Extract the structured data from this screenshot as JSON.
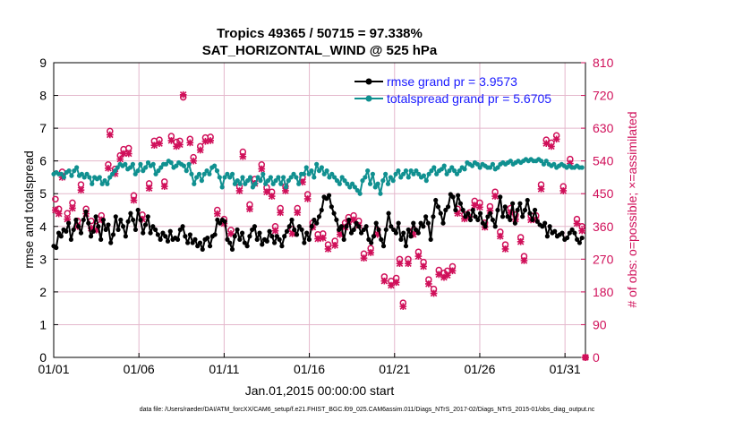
{
  "chart_data": {
    "type": "line",
    "title": "Tropics 49365 / 50715 = 97.338%",
    "subtitle": "SAT_HORIZONTAL_WIND @ 525 hPa",
    "xlabel": "Jan.01,2015 00:00:00 start",
    "ylabel": "rmse and totalspread",
    "y2label": "# of obs: o=possible; ×=assimilated",
    "footer": "data file: /Users/raeder/DAI/ATM_forcXX/CAM6_setup/f.e21.FHIST_BGC.f09_025.CAM6assim.011/Diags_NTrS_2017-02/Diags_NTrS_2015-01/obs_diag_output.nc",
    "xlim": [
      1,
      32.2
    ],
    "ylim": [
      0,
      9
    ],
    "y2lim": [
      0,
      810
    ],
    "x_ticks": [
      1,
      6,
      11,
      16,
      21,
      26,
      31
    ],
    "x_tick_labels": [
      "01/01",
      "01/06",
      "01/11",
      "01/16",
      "01/21",
      "01/26",
      "01/31"
    ],
    "y_ticks": [
      "0",
      "1",
      "2",
      "3",
      "4",
      "5",
      "6",
      "7",
      "8",
      "9"
    ],
    "y2_ticks": [
      "0",
      "90",
      "180",
      "270",
      "360",
      "450",
      "540",
      "630",
      "720",
      "810"
    ],
    "colors": {
      "rmse": "#000000",
      "spread": "#109090",
      "obs": "#d0105a",
      "legend_text": "#1a1aff"
    },
    "series": [
      {
        "name": "rmse",
        "legend": "rmse grand pr = 3.9573",
        "values": [
          3.4,
          3.35,
          3.8,
          3.7,
          3.9,
          3.85,
          4.1,
          3.6,
          3.9,
          4.2,
          4.0,
          3.8,
          4.2,
          4.45,
          4.1,
          3.7,
          3.85,
          4.3,
          4.0,
          3.6,
          4.2,
          3.9,
          4.05,
          3.5,
          3.75,
          4.3,
          3.9,
          4.2,
          4.0,
          3.7,
          4.15,
          4.4,
          4.2,
          3.9,
          4.5,
          4.2,
          3.8,
          4.05,
          4.3,
          3.8,
          4.0,
          3.9,
          3.75,
          3.6,
          3.8,
          3.7,
          3.55,
          3.85,
          3.6,
          3.65,
          3.6,
          3.9,
          4.0,
          3.7,
          3.5,
          3.75,
          3.5,
          3.6,
          3.4,
          3.5,
          3.3,
          3.6,
          3.65,
          3.4,
          3.7,
          3.75,
          4.2,
          4.1,
          4.2,
          4.15,
          3.6,
          3.5,
          3.3,
          3.7,
          3.9,
          3.6,
          3.8,
          3.5,
          3.4,
          3.7,
          3.9,
          4.0,
          3.6,
          3.8,
          3.45,
          3.6,
          3.55,
          3.85,
          3.7,
          3.5,
          3.7,
          3.6,
          3.4,
          3.7,
          3.85,
          4.0,
          4.2,
          3.9,
          3.75,
          4.0,
          3.9,
          3.5,
          3.8,
          3.6,
          4.0,
          4.2,
          4.1,
          4.3,
          4.5,
          4.9,
          4.85,
          4.95,
          4.6,
          4.4,
          4.2,
          3.9,
          4.0,
          3.6,
          4.0,
          4.2,
          3.8,
          3.9,
          4.1,
          4.0,
          3.8,
          3.9,
          4.0,
          3.6,
          3.5,
          3.7,
          4.1,
          3.9,
          3.6,
          3.4,
          3.9,
          4.4,
          4.0,
          3.9,
          3.8,
          4.1,
          3.6,
          3.8,
          3.4,
          3.9,
          3.7,
          4.1,
          3.9,
          3.8,
          4.1,
          4.0,
          4.3,
          4.1,
          3.6,
          4.3,
          4.8,
          4.6,
          4.4,
          4.1,
          4.5,
          4.6,
          4.98,
          4.9,
          4.5,
          4.95,
          4.7,
          4.5,
          4.3,
          4.4,
          4.2,
          4.5,
          4.3,
          4.2,
          4.4,
          4.1,
          4.0,
          4.3,
          4.4,
          4.2,
          4.0,
          4.5,
          4.9,
          4.3,
          4.6,
          4.3,
          4.2,
          4.7,
          4.1,
          4.5,
          4.7,
          4.3,
          4.5,
          4.8,
          4.4,
          4.2,
          4.5,
          4.15,
          4.05,
          4.0,
          4.1,
          3.7,
          4.0,
          3.8,
          3.85,
          3.7,
          3.75,
          3.8,
          3.6,
          3.65,
          3.8,
          3.9,
          3.8,
          3.6,
          3.5,
          3.65
        ]
      },
      {
        "name": "totalspread",
        "legend": "totalspread grand pr = 5.6705",
        "values": [
          5.6,
          5.65,
          5.6,
          5.6,
          5.5,
          5.65,
          5.7,
          5.55,
          5.7,
          5.8,
          5.55,
          5.6,
          5.5,
          5.6,
          5.5,
          5.3,
          5.5,
          5.45,
          5.5,
          5.3,
          5.4,
          5.3,
          5.5,
          5.6,
          5.7,
          5.8,
          5.9,
          5.85,
          5.9,
          5.75,
          5.8,
          5.9,
          5.6,
          5.7,
          5.9,
          5.7,
          5.8,
          5.95,
          5.85,
          5.9,
          5.6,
          5.7,
          5.8,
          5.9,
          5.9,
          6.0,
          5.95,
          5.8,
          5.85,
          5.95,
          5.9,
          5.85,
          5.7,
          5.9,
          5.6,
          5.3,
          5.5,
          5.6,
          5.4,
          5.6,
          5.7,
          5.6,
          5.8,
          5.85,
          5.7,
          5.5,
          5.2,
          5.5,
          5.6,
          5.5,
          5.6,
          5.3,
          5.4,
          5.3,
          5.5,
          5.3,
          5.4,
          5.5,
          5.2,
          5.3,
          5.5,
          5.4,
          5.6,
          5.3,
          5.4,
          5.5,
          5.3,
          5.4,
          5.5,
          5.3,
          5.5,
          5.2,
          5.4,
          5.5,
          5.6,
          5.5,
          5.3,
          5.6,
          5.6,
          5.8,
          5.6,
          5.7,
          5.5,
          5.9,
          5.7,
          5.8,
          5.6,
          5.7,
          5.5,
          5.6,
          5.5,
          5.4,
          5.3,
          5.5,
          5.4,
          5.3,
          5.2,
          5.3,
          5.2,
          5.1,
          5.0,
          5.4,
          5.5,
          5.7,
          5.3,
          5.6,
          5.2,
          5.3,
          5.0,
          5.4,
          5.6,
          5.3,
          5.5,
          5.4,
          5.6,
          5.7,
          5.5,
          5.6,
          5.7,
          5.5,
          5.7,
          5.6,
          5.7,
          5.6,
          5.5,
          5.55,
          5.4,
          5.6,
          5.7,
          5.8,
          5.6,
          5.7,
          5.75,
          5.85,
          5.6,
          5.7,
          5.8,
          5.7,
          5.6,
          5.7,
          5.8,
          5.75,
          5.95,
          5.9,
          5.85,
          5.95,
          5.9,
          5.8,
          5.9,
          5.85,
          5.8,
          5.8,
          5.9,
          5.75,
          5.8,
          5.9,
          5.95,
          5.9,
          5.95,
          6.0,
          5.9,
          5.95,
          6.0,
          5.95,
          6.0,
          6.05,
          6.0,
          6.05,
          6.0,
          6.0,
          6.05,
          6.0,
          5.9,
          6.0,
          5.9,
          5.85,
          5.9,
          5.8,
          5.85,
          5.9,
          5.85,
          5.8,
          5.85,
          5.8,
          5.8,
          5.85,
          5.8,
          5.8
        ]
      },
      {
        "name": "obs_possible",
        "points": [
          [
            1.1,
            435
          ],
          [
            1.3,
            408
          ],
          [
            1.5,
            510
          ],
          [
            1.8,
            396
          ],
          [
            2.1,
            425
          ],
          [
            2.4,
            375
          ],
          [
            2.6,
            475
          ],
          [
            2.9,
            408
          ],
          [
            3.2,
            375
          ],
          [
            3.5,
            360
          ],
          [
            3.8,
            390
          ],
          [
            4.2,
            530
          ],
          [
            4.3,
            622
          ],
          [
            4.6,
            518
          ],
          [
            4.9,
            555
          ],
          [
            5.1,
            572
          ],
          [
            5.4,
            575
          ],
          [
            5.7,
            445
          ],
          [
            6.2,
            392
          ],
          [
            6.6,
            478
          ],
          [
            6.9,
            595
          ],
          [
            7.2,
            598
          ],
          [
            7.5,
            483
          ],
          [
            7.9,
            608
          ],
          [
            8.2,
            592
          ],
          [
            8.4,
            595
          ],
          [
            8.6,
            715
          ],
          [
            9.0,
            600
          ],
          [
            9.2,
            550
          ],
          [
            9.6,
            580
          ],
          [
            9.9,
            604
          ],
          [
            10.2,
            606
          ],
          [
            10.6,
            405
          ],
          [
            11.0,
            380
          ],
          [
            11.4,
            350
          ],
          [
            11.9,
            470
          ],
          [
            12.1,
            565
          ],
          [
            12.5,
            420
          ],
          [
            12.8,
            490
          ],
          [
            13.2,
            530
          ],
          [
            13.5,
            467
          ],
          [
            13.8,
            455
          ],
          [
            14.0,
            360
          ],
          [
            14.3,
            410
          ],
          [
            14.6,
            470
          ],
          [
            15.0,
            352
          ],
          [
            15.3,
            410
          ],
          [
            15.6,
            495
          ],
          [
            15.9,
            448
          ],
          [
            16.2,
            370
          ],
          [
            16.5,
            338
          ],
          [
            16.8,
            340
          ],
          [
            17.1,
            310
          ],
          [
            17.5,
            320
          ],
          [
            17.8,
            350
          ],
          [
            18.1,
            370
          ],
          [
            18.3,
            385
          ],
          [
            18.6,
            390
          ],
          [
            18.9,
            375
          ],
          [
            19.2,
            285
          ],
          [
            19.6,
            300
          ],
          [
            20.0,
            350
          ],
          [
            20.4,
            222
          ],
          [
            20.8,
            210
          ],
          [
            21.1,
            218
          ],
          [
            21.3,
            270
          ],
          [
            21.5,
            150
          ],
          [
            21.8,
            270
          ],
          [
            22.1,
            350
          ],
          [
            22.4,
            290
          ],
          [
            22.7,
            262
          ],
          [
            23.0,
            214
          ],
          [
            23.3,
            188
          ],
          [
            23.6,
            240
          ],
          [
            23.9,
            232
          ],
          [
            24.1,
            238
          ],
          [
            24.4,
            250
          ],
          [
            24.7,
            408
          ],
          [
            25.1,
            393
          ],
          [
            25.4,
            398
          ],
          [
            25.7,
            430
          ],
          [
            26.0,
            425
          ],
          [
            26.3,
            370
          ],
          [
            26.6,
            415
          ],
          [
            26.9,
            455
          ],
          [
            27.2,
            345
          ],
          [
            27.5,
            310
          ],
          [
            27.8,
            410
          ],
          [
            28.1,
            392
          ],
          [
            28.4,
            330
          ],
          [
            28.6,
            278
          ],
          [
            29.0,
            390
          ],
          [
            29.3,
            390
          ],
          [
            29.6,
            475
          ],
          [
            29.9,
            598
          ],
          [
            30.2,
            590
          ],
          [
            30.5,
            610
          ],
          [
            30.9,
            470
          ],
          [
            31.3,
            545
          ],
          [
            31.7,
            380
          ],
          [
            32.0,
            360
          ],
          [
            32.2,
            0
          ]
        ]
      },
      {
        "name": "obs_assimilated",
        "points": [
          [
            1.1,
            405
          ],
          [
            1.3,
            395
          ],
          [
            1.5,
            495
          ],
          [
            1.8,
            380
          ],
          [
            2.1,
            410
          ],
          [
            2.4,
            360
          ],
          [
            2.6,
            460
          ],
          [
            2.9,
            395
          ],
          [
            3.2,
            355
          ],
          [
            3.5,
            350
          ],
          [
            3.8,
            378
          ],
          [
            4.2,
            520
          ],
          [
            4.3,
            612
          ],
          [
            4.6,
            505
          ],
          [
            4.9,
            545
          ],
          [
            5.1,
            560
          ],
          [
            5.4,
            560
          ],
          [
            5.7,
            432
          ],
          [
            6.2,
            380
          ],
          [
            6.6,
            465
          ],
          [
            6.9,
            583
          ],
          [
            7.2,
            588
          ],
          [
            7.5,
            470
          ],
          [
            7.9,
            596
          ],
          [
            8.2,
            580
          ],
          [
            8.4,
            585
          ],
          [
            8.6,
            722
          ],
          [
            9.0,
            590
          ],
          [
            9.2,
            540
          ],
          [
            9.6,
            570
          ],
          [
            9.9,
            594
          ],
          [
            10.2,
            596
          ],
          [
            10.6,
            395
          ],
          [
            11.0,
            368
          ],
          [
            11.4,
            340
          ],
          [
            11.9,
            458
          ],
          [
            12.1,
            552
          ],
          [
            12.5,
            408
          ],
          [
            12.8,
            478
          ],
          [
            13.2,
            518
          ],
          [
            13.5,
            455
          ],
          [
            13.8,
            443
          ],
          [
            14.0,
            348
          ],
          [
            14.3,
            398
          ],
          [
            14.6,
            458
          ],
          [
            15.0,
            340
          ],
          [
            15.3,
            398
          ],
          [
            15.6,
            482
          ],
          [
            15.9,
            436
          ],
          [
            16.2,
            358
          ],
          [
            16.5,
            326
          ],
          [
            16.8,
            328
          ],
          [
            17.1,
            298
          ],
          [
            17.5,
            308
          ],
          [
            17.8,
            338
          ],
          [
            18.1,
            358
          ],
          [
            18.3,
            373
          ],
          [
            18.6,
            378
          ],
          [
            18.9,
            363
          ],
          [
            19.2,
            273
          ],
          [
            19.6,
            288
          ],
          [
            20.0,
            338
          ],
          [
            20.4,
            210
          ],
          [
            20.8,
            198
          ],
          [
            21.1,
            206
          ],
          [
            21.3,
            258
          ],
          [
            21.5,
            140
          ],
          [
            21.8,
            258
          ],
          [
            22.1,
            338
          ],
          [
            22.4,
            278
          ],
          [
            22.7,
            250
          ],
          [
            23.0,
            202
          ],
          [
            23.3,
            176
          ],
          [
            23.6,
            228
          ],
          [
            23.9,
            220
          ],
          [
            24.1,
            226
          ],
          [
            24.4,
            238
          ],
          [
            24.7,
            396
          ],
          [
            25.1,
            381
          ],
          [
            25.4,
            386
          ],
          [
            25.7,
            418
          ],
          [
            26.0,
            413
          ],
          [
            26.3,
            358
          ],
          [
            26.6,
            403
          ],
          [
            26.9,
            443
          ],
          [
            27.2,
            333
          ],
          [
            27.5,
            298
          ],
          [
            27.8,
            398
          ],
          [
            28.1,
            380
          ],
          [
            28.4,
            318
          ],
          [
            28.6,
            266
          ],
          [
            29.0,
            378
          ],
          [
            29.3,
            378
          ],
          [
            29.6,
            463
          ],
          [
            29.9,
            588
          ],
          [
            30.2,
            580
          ],
          [
            30.5,
            600
          ],
          [
            30.9,
            458
          ],
          [
            31.3,
            533
          ],
          [
            31.7,
            368
          ],
          [
            32.0,
            348
          ],
          [
            32.2,
            0
          ]
        ]
      }
    ]
  }
}
